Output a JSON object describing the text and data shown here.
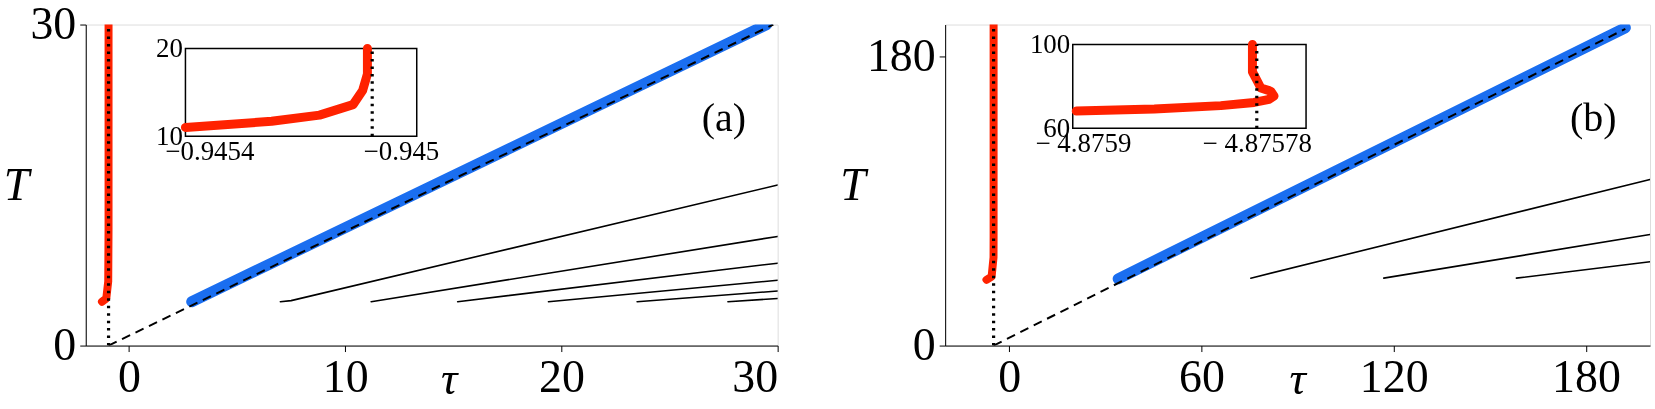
{
  "chart_data": [
    {
      "type": "line",
      "xlabel": "τ",
      "ylabel": "T",
      "xlim": [
        -2,
        30
      ],
      "ylim": [
        0,
        30
      ],
      "xticks": [
        0,
        10,
        20,
        30
      ],
      "yticks": [
        0,
        30
      ],
      "annotations": [
        "(a)"
      ],
      "series": [
        {
          "color": "#000000",
          "x": [
            7.0,
            7.5,
            30
          ],
          "values": [
            4.1,
            4.2,
            15
          ]
        },
        {
          "color": "#000000",
          "x": [
            11.2,
            30
          ],
          "values": [
            4.1,
            10.2
          ]
        },
        {
          "color": "#000000",
          "x": [
            15.2,
            30
          ],
          "values": [
            4.1,
            7.7
          ]
        },
        {
          "color": "#000000",
          "x": [
            19.4,
            30
          ],
          "values": [
            4.1,
            6.1
          ]
        },
        {
          "color": "#000000",
          "x": [
            23.5,
            30
          ],
          "values": [
            4.1,
            5.1
          ]
        },
        {
          "color": "#000000",
          "x": [
            27.7,
            30
          ],
          "values": [
            4.1,
            4.4
          ]
        },
        {
          "color": "#1a6ef0",
          "x": [
            2.9,
            29.5
          ],
          "values": [
            4.1,
            30
          ]
        },
        {
          "color": "#000000",
          "line_style": "dashed",
          "x": [
            -0.945,
            29.8
          ],
          "values": [
            0,
            30
          ]
        },
        {
          "color": "#ff2200",
          "x": [
            -1.25,
            -1.05,
            -0.96,
            -0.94545,
            -0.94507,
            -0.94507
          ],
          "values": [
            4.1,
            4.4,
            6,
            11,
            20,
            30
          ]
        }
      ],
      "ref_lines": [
        {
          "axis": "x",
          "value": -0.945,
          "label": null,
          "color": "#000000",
          "line_style": "dotted"
        }
      ]
    },
    {
      "type": "line",
      "xlim": [
        -0.94545,
        -0.944967
      ],
      "ylim": [
        10,
        20
      ],
      "xticks": [
        {
          "value": -0.9454,
          "label": "−0.9454"
        },
        {
          "value": -0.945,
          "label": "−0.945"
        }
      ],
      "yticks": [
        10,
        20
      ],
      "series": [
        {
          "color": "#ff2200",
          "x": [
            -0.94545,
            -0.94527,
            -0.94517,
            -0.9451,
            -0.94508,
            -0.94507,
            -0.94507
          ],
          "values": [
            11.0,
            11.7,
            12.4,
            13.6,
            15.2,
            17.1,
            20
          ]
        }
      ],
      "ref_lines": [
        {
          "axis": "x",
          "value": -0.94506,
          "label": null,
          "color": "#000000",
          "line_style": "dotted"
        }
      ]
    },
    {
      "type": "line",
      "xlabel": "τ",
      "ylabel": "T",
      "xlim": [
        -20,
        200
      ],
      "ylim": [
        0,
        200
      ],
      "xticks": [
        0,
        60,
        120,
        180
      ],
      "yticks": [
        0,
        180
      ],
      "annotations": [
        "(b)"
      ],
      "series": [
        {
          "color": "#000000",
          "x": [
            75.4,
            200
          ],
          "values": [
            42,
            103.5
          ]
        },
        {
          "color": "#000000",
          "x": [
            116.9,
            200
          ],
          "values": [
            42,
            69.2
          ]
        },
        {
          "color": "#000000",
          "x": [
            158.3,
            200
          ],
          "values": [
            42,
            52.2
          ]
        },
        {
          "color": "#1a6ef0",
          "x": [
            34,
            192.3
          ],
          "values": [
            41.6,
            198
          ]
        },
        {
          "color": "#000000",
          "line_style": "dashed",
          "x": [
            -4.876,
            192.3
          ],
          "values": [
            0,
            197.3
          ]
        },
        {
          "color": "#ff2200",
          "x": [
            -7.1,
            -5.5,
            -4.9,
            -4.8759,
            -4.87578,
            -4.87578
          ],
          "values": [
            41,
            43,
            55,
            68,
            100,
            200
          ]
        }
      ],
      "ref_lines": [
        {
          "axis": "x",
          "value": -4.87578,
          "label": null,
          "color": "#000000",
          "line_style": "dotted"
        }
      ]
    },
    {
      "type": "line",
      "xlim": [
        -4.875907,
        -4.875746
      ],
      "ylim": [
        60,
        100
      ],
      "xticks": [
        {
          "value": -4.8759,
          "label": "− 4.8759"
        },
        {
          "value": -4.87578,
          "label": "− 4.87578"
        }
      ],
      "yticks": [
        60,
        100
      ],
      "series": [
        {
          "color": "#ff2200",
          "x": [
            -4.8759046,
            -4.8758507,
            -4.8758048,
            -4.8757819,
            -4.8757715,
            -4.8757681,
            -4.8757704,
            -4.8757772,
            -4.8757795,
            -4.875783,
            -4.875783,
            -4.875783
          ],
          "values": [
            68.2,
            69.2,
            70.8,
            72.3,
            73.8,
            75.4,
            77.7,
            79.2,
            82.3,
            86.9,
            91.5,
            100
          ]
        }
      ],
      "ref_lines": [
        {
          "axis": "x",
          "value": -4.87578,
          "label": null,
          "color": "#000000",
          "line_style": "dotted"
        }
      ]
    }
  ]
}
